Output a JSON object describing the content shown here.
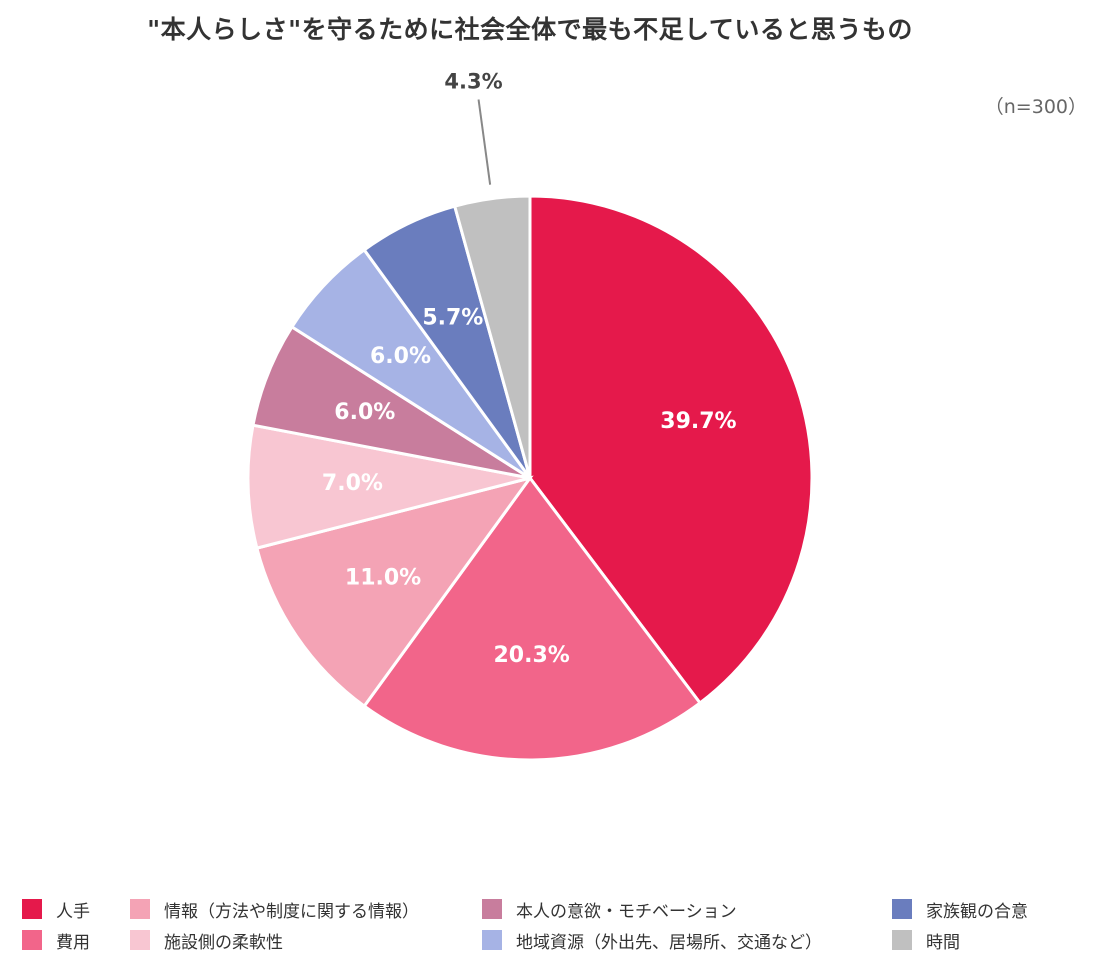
{
  "chart_data": {
    "type": "pie",
    "title": "\"本人らしさ\"を守るために社会全体で最も不足していると思うもの",
    "note": "（n=300）",
    "legend_position": "bottom",
    "slices": [
      {
        "name": "人手",
        "value": 39.7,
        "label": "39.7%",
        "color": "#E5194B"
      },
      {
        "name": "費用",
        "value": 20.3,
        "label": "20.3%",
        "color": "#F2658A"
      },
      {
        "name": "情報（方法や制度に関する情報）",
        "value": 11.0,
        "label": "11.0%",
        "color": "#F4A3B5"
      },
      {
        "name": "施設側の柔軟性",
        "value": 7.0,
        "label": "7.0%",
        "color": "#F8C6D2"
      },
      {
        "name": "本人の意欲・モチベーション",
        "value": 6.0,
        "label": "6.0%",
        "color": "#C87D9D"
      },
      {
        "name": "地域資源（外出先、居場所、交通など）",
        "value": 6.0,
        "label": "6.0%",
        "color": "#A6B3E5"
      },
      {
        "name": "家族観の合意",
        "value": 5.7,
        "label": "5.7%",
        "color": "#6A7DBE"
      },
      {
        "name": "時間",
        "value": 4.3,
        "label": "4.3%",
        "color": "#C0C0C0"
      }
    ],
    "legend_order": [
      0,
      1,
      2,
      3,
      4,
      5,
      6,
      7
    ]
  }
}
